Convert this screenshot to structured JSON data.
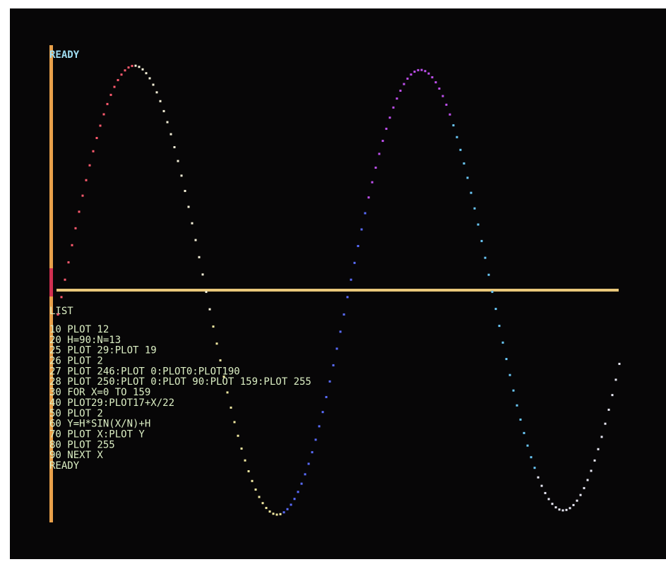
{
  "screen": {
    "status_top": "READY",
    "command": "LIST",
    "program": [
      "10 PLOT 12",
      "20 H=90:N=13",
      "25 PLOT 29:PLOT 19",
      "26 PLOT 2",
      "27 PLOT 246:PLOT 0:PLOT0:PLOT190",
      "28 PLOT 250:PLOT 0:PLOT 90:PLOT 159:PLOT 255",
      "30 FOR X=0 TO 159",
      "40 PLOT29:PLOT17+X/22",
      "50 PLOT 2",
      "60 Y=H*SIN(X/N)+H",
      "70 PLOT X:PLOT Y",
      "80 PLOT 255",
      "90 NEXT X"
    ],
    "status_bottom": "READY"
  }
}
